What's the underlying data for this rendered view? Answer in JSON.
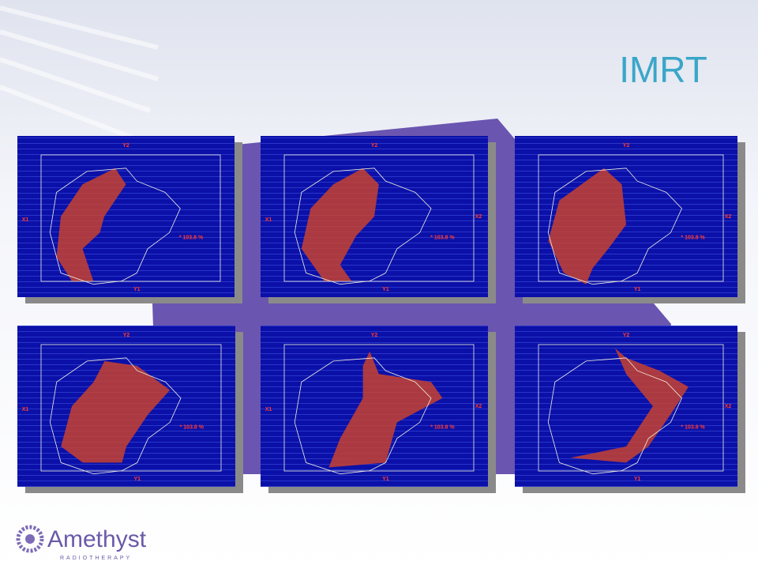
{
  "header": {
    "title": "IMRT"
  },
  "panels": [
    {
      "y2": "Y2",
      "x1": "X1",
      "y1": "Y1",
      "dose": "* 103.8 %"
    },
    {
      "y2": "Y2",
      "x1": "X1",
      "x2": "X2",
      "y1": "Y1",
      "dose": "* 103.8 %"
    },
    {
      "y2": "Y2",
      "x2": "X2",
      "y1": "Y1",
      "dose": "* 103.8 %"
    },
    {
      "y2": "Y2",
      "x1": "X1",
      "y1": "Y1",
      "dose": "* 103.8 %"
    },
    {
      "y2": "Y2",
      "x1": "X1",
      "x2": "X2",
      "y1": "Y1",
      "dose": "* 103.8 %"
    },
    {
      "y2": "Y2",
      "x2": "X2",
      "y1": "Y1",
      "dose": "* 103.8 %"
    }
  ],
  "logo": {
    "name": "Amethyst",
    "tagline": "RADIOTHERAPY"
  }
}
